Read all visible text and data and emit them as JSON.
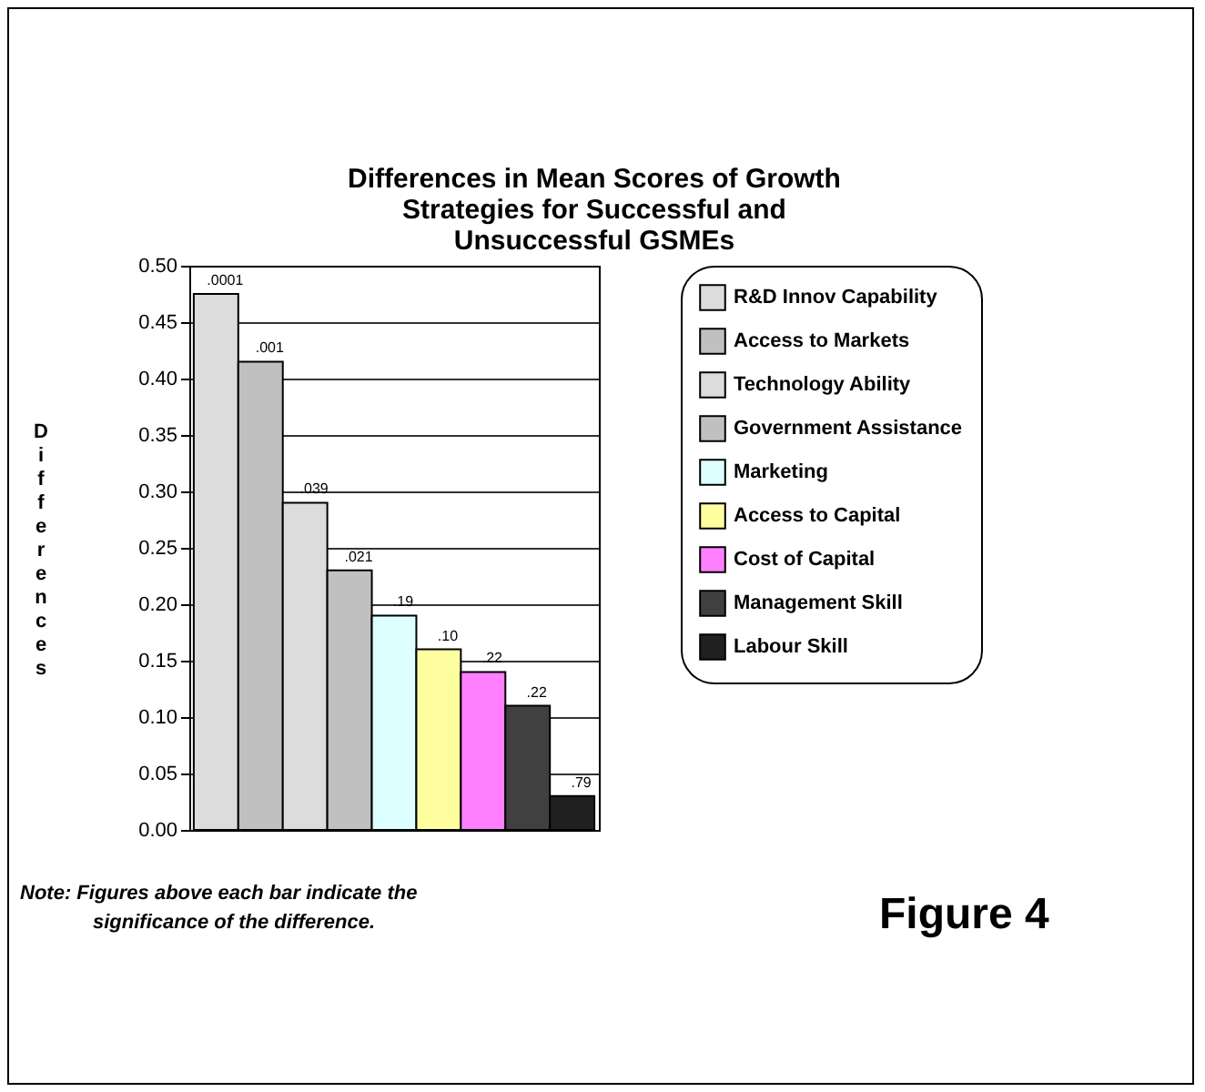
{
  "chart_data": {
    "type": "bar",
    "title": "Differences in Mean Scores of Growth Strategies for Successful and Unsuccessful GSMEs",
    "ylabel": "Differences",
    "categories": [
      null,
      null,
      null,
      null,
      null,
      null,
      null,
      null,
      null
    ],
    "series": [
      {
        "name": "R&D Innov Capability",
        "color": "#dcdcdc",
        "values": [
          0.475,
          null,
          null,
          null,
          null,
          null,
          null,
          null,
          null
        ]
      },
      {
        "name": "Access to Markets",
        "color": "#c0c0c0",
        "values": [
          null,
          0.415,
          null,
          null,
          null,
          null,
          null,
          null,
          null
        ]
      },
      {
        "name": "Technology Ability",
        "color": "#dcdcdc",
        "values": [
          null,
          null,
          0.29,
          null,
          null,
          null,
          null,
          null,
          null
        ]
      },
      {
        "name": "Government Assistance",
        "color": "#c0c0c0",
        "values": [
          null,
          null,
          null,
          0.23,
          null,
          null,
          null,
          null,
          null
        ]
      },
      {
        "name": "Marketing",
        "color": "#ddffff",
        "values": [
          null,
          null,
          null,
          null,
          0.19,
          null,
          null,
          null,
          null
        ]
      },
      {
        "name": "Access to Capital",
        "color": "#ffffa0",
        "values": [
          null,
          null,
          null,
          null,
          null,
          0.16,
          null,
          null,
          null
        ]
      },
      {
        "name": "Cost of Capital",
        "color": "#ff80ff",
        "values": [
          null,
          null,
          null,
          null,
          null,
          null,
          0.14,
          null,
          null
        ]
      },
      {
        "name": "Management Skill",
        "color": "#404040",
        "values": [
          null,
          null,
          null,
          null,
          null,
          null,
          null,
          0.11,
          null
        ]
      },
      {
        "name": "Labour Skill",
        "color": "#202020",
        "values": [
          null,
          null,
          null,
          null,
          null,
          null,
          null,
          null,
          0.03
        ]
      }
    ],
    "ylim": [
      0,
      0.5
    ],
    "yticks": [
      {
        "value": 0,
        "label": "0.00"
      },
      {
        "value": 0.05,
        "label": "0.05"
      },
      {
        "value": 0.1,
        "label": "0.10"
      },
      {
        "value": 0.15,
        "label": "0.15"
      },
      {
        "value": 0.2,
        "label": "0.20"
      },
      {
        "value": 0.25,
        "label": "0.25"
      },
      {
        "value": 0.3,
        "label": "0.30"
      },
      {
        "value": 0.35,
        "label": "0.35"
      },
      {
        "value": 0.4,
        "label": "0.40"
      },
      {
        "value": 0.45,
        "label": "0.45"
      },
      {
        "value": 0.5,
        "label": "0.50"
      }
    ],
    "grid": "y",
    "legend": "right",
    "tick_labels": "y",
    "annotations": [
      {
        "text": ".0001",
        "y": 0.475
      },
      {
        "text": ".001",
        "y": 0.415
      },
      {
        "text": ".039",
        "y": 0.29
      },
      {
        "text": ".021",
        "y": 0.23
      },
      {
        "text": ".19",
        "y": 0.19
      },
      {
        "text": ".10",
        "y": 0.16
      },
      {
        "text": ".22",
        "y": 0.14
      },
      {
        "text": ".22",
        "y": 0.11
      },
      {
        "text": ".79",
        "y": 0.03
      },
      "Note: Figures above each bar indicate the significance of the difference.",
      "Figure 4"
    ]
  }
}
